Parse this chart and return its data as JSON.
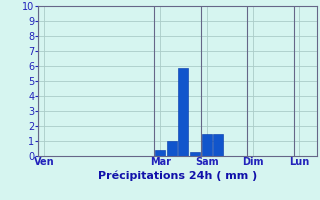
{
  "title": "Précipitations 24h ( mm )",
  "background_color": "#d6f5f0",
  "grid_color": "#aaccc8",
  "bar_color": "#1155cc",
  "bar_color_edge": "#0033aa",
  "ylim": [
    0,
    10
  ],
  "yticks": [
    0,
    1,
    2,
    3,
    4,
    5,
    6,
    7,
    8,
    9,
    10
  ],
  "day_labels": [
    "Ven",
    "Mar",
    "Sam",
    "Dim",
    "Lun"
  ],
  "num_bars": 24,
  "bar_values": [
    0,
    0,
    0,
    0,
    0,
    0,
    0,
    0,
    0,
    0,
    0.4,
    1.0,
    5.85,
    0.3,
    1.5,
    1.5,
    0,
    0,
    0,
    0,
    0,
    0,
    0,
    0
  ],
  "xlabel_color": "#1111aa",
  "tick_label_color": "#2222bb",
  "axis_line_color": "#666688",
  "vline_color": "#666688",
  "ylabel_fontsize": 7,
  "xlabel_fontsize": 8,
  "xtick_fontsize": 7
}
